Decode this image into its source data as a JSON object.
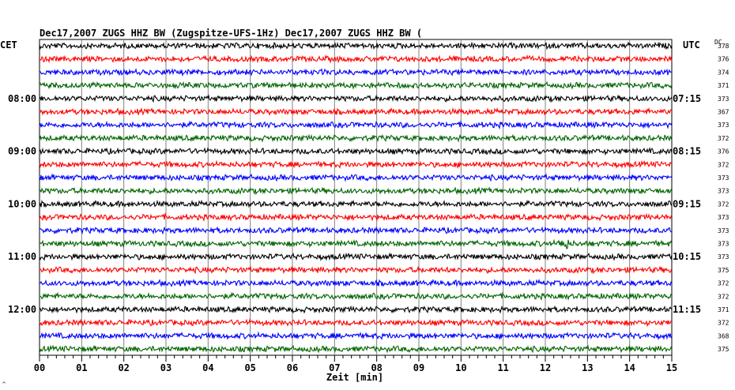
{
  "header": {
    "title": "Dec17,2007   ZUGS HHZ BW (Zugspitze-UFS-1Hz) Dec17,2007   ZUGS HHZ BW ("
  },
  "labels": {
    "left_zone": "CET",
    "right_zone": "UTC",
    "dc_header": "DC",
    "xlabel": "Zeit [min]",
    "corner_mark": "^"
  },
  "chart_data": {
    "type": "line",
    "title": "Dec17,2007   ZUGS HHZ BW (Zugspitze-UFS-1Hz) Dec17,2007   ZUGS HHZ BW (",
    "xlabel": "Zeit [min]",
    "ylabel": "",
    "xlim": [
      0,
      15
    ],
    "x_ticks": [
      "00",
      "01",
      "02",
      "03",
      "04",
      "05",
      "06",
      "07",
      "08",
      "09",
      "10",
      "11",
      "12",
      "13",
      "14",
      "15"
    ],
    "trace_interval_minutes": 15,
    "trace_count": 24,
    "trace_colors": [
      "#000000",
      "#ff0000",
      "#0000ff",
      "#006400"
    ],
    "left_hour_labels": [
      {
        "trace": 4,
        "text": "08:00"
      },
      {
        "trace": 8,
        "text": "09:00"
      },
      {
        "trace": 12,
        "text": "10:00"
      },
      {
        "trace": 16,
        "text": "11:00"
      },
      {
        "trace": 20,
        "text": "12:00"
      }
    ],
    "right_hour_labels": [
      {
        "trace": 4,
        "text": "07:15"
      },
      {
        "trace": 8,
        "text": "08:15"
      },
      {
        "trace": 12,
        "text": "09:15"
      },
      {
        "trace": 16,
        "text": "10:15"
      },
      {
        "trace": 20,
        "text": "11:15"
      }
    ],
    "dc_offsets": [
      "378",
      "376",
      "374",
      "371",
      "373",
      "367",
      "373",
      "372",
      "376",
      "372",
      "373",
      "373",
      "372",
      "373",
      "373",
      "373",
      "373",
      "375",
      "372",
      "372",
      "371",
      "372",
      "368",
      "375"
    ],
    "events": [
      {
        "trace": 15,
        "minute": 12.45,
        "amplitude": "small"
      }
    ],
    "grid": true
  },
  "colors": {
    "background": "#ffffff",
    "axis": "#000000",
    "grid": "#808080"
  }
}
